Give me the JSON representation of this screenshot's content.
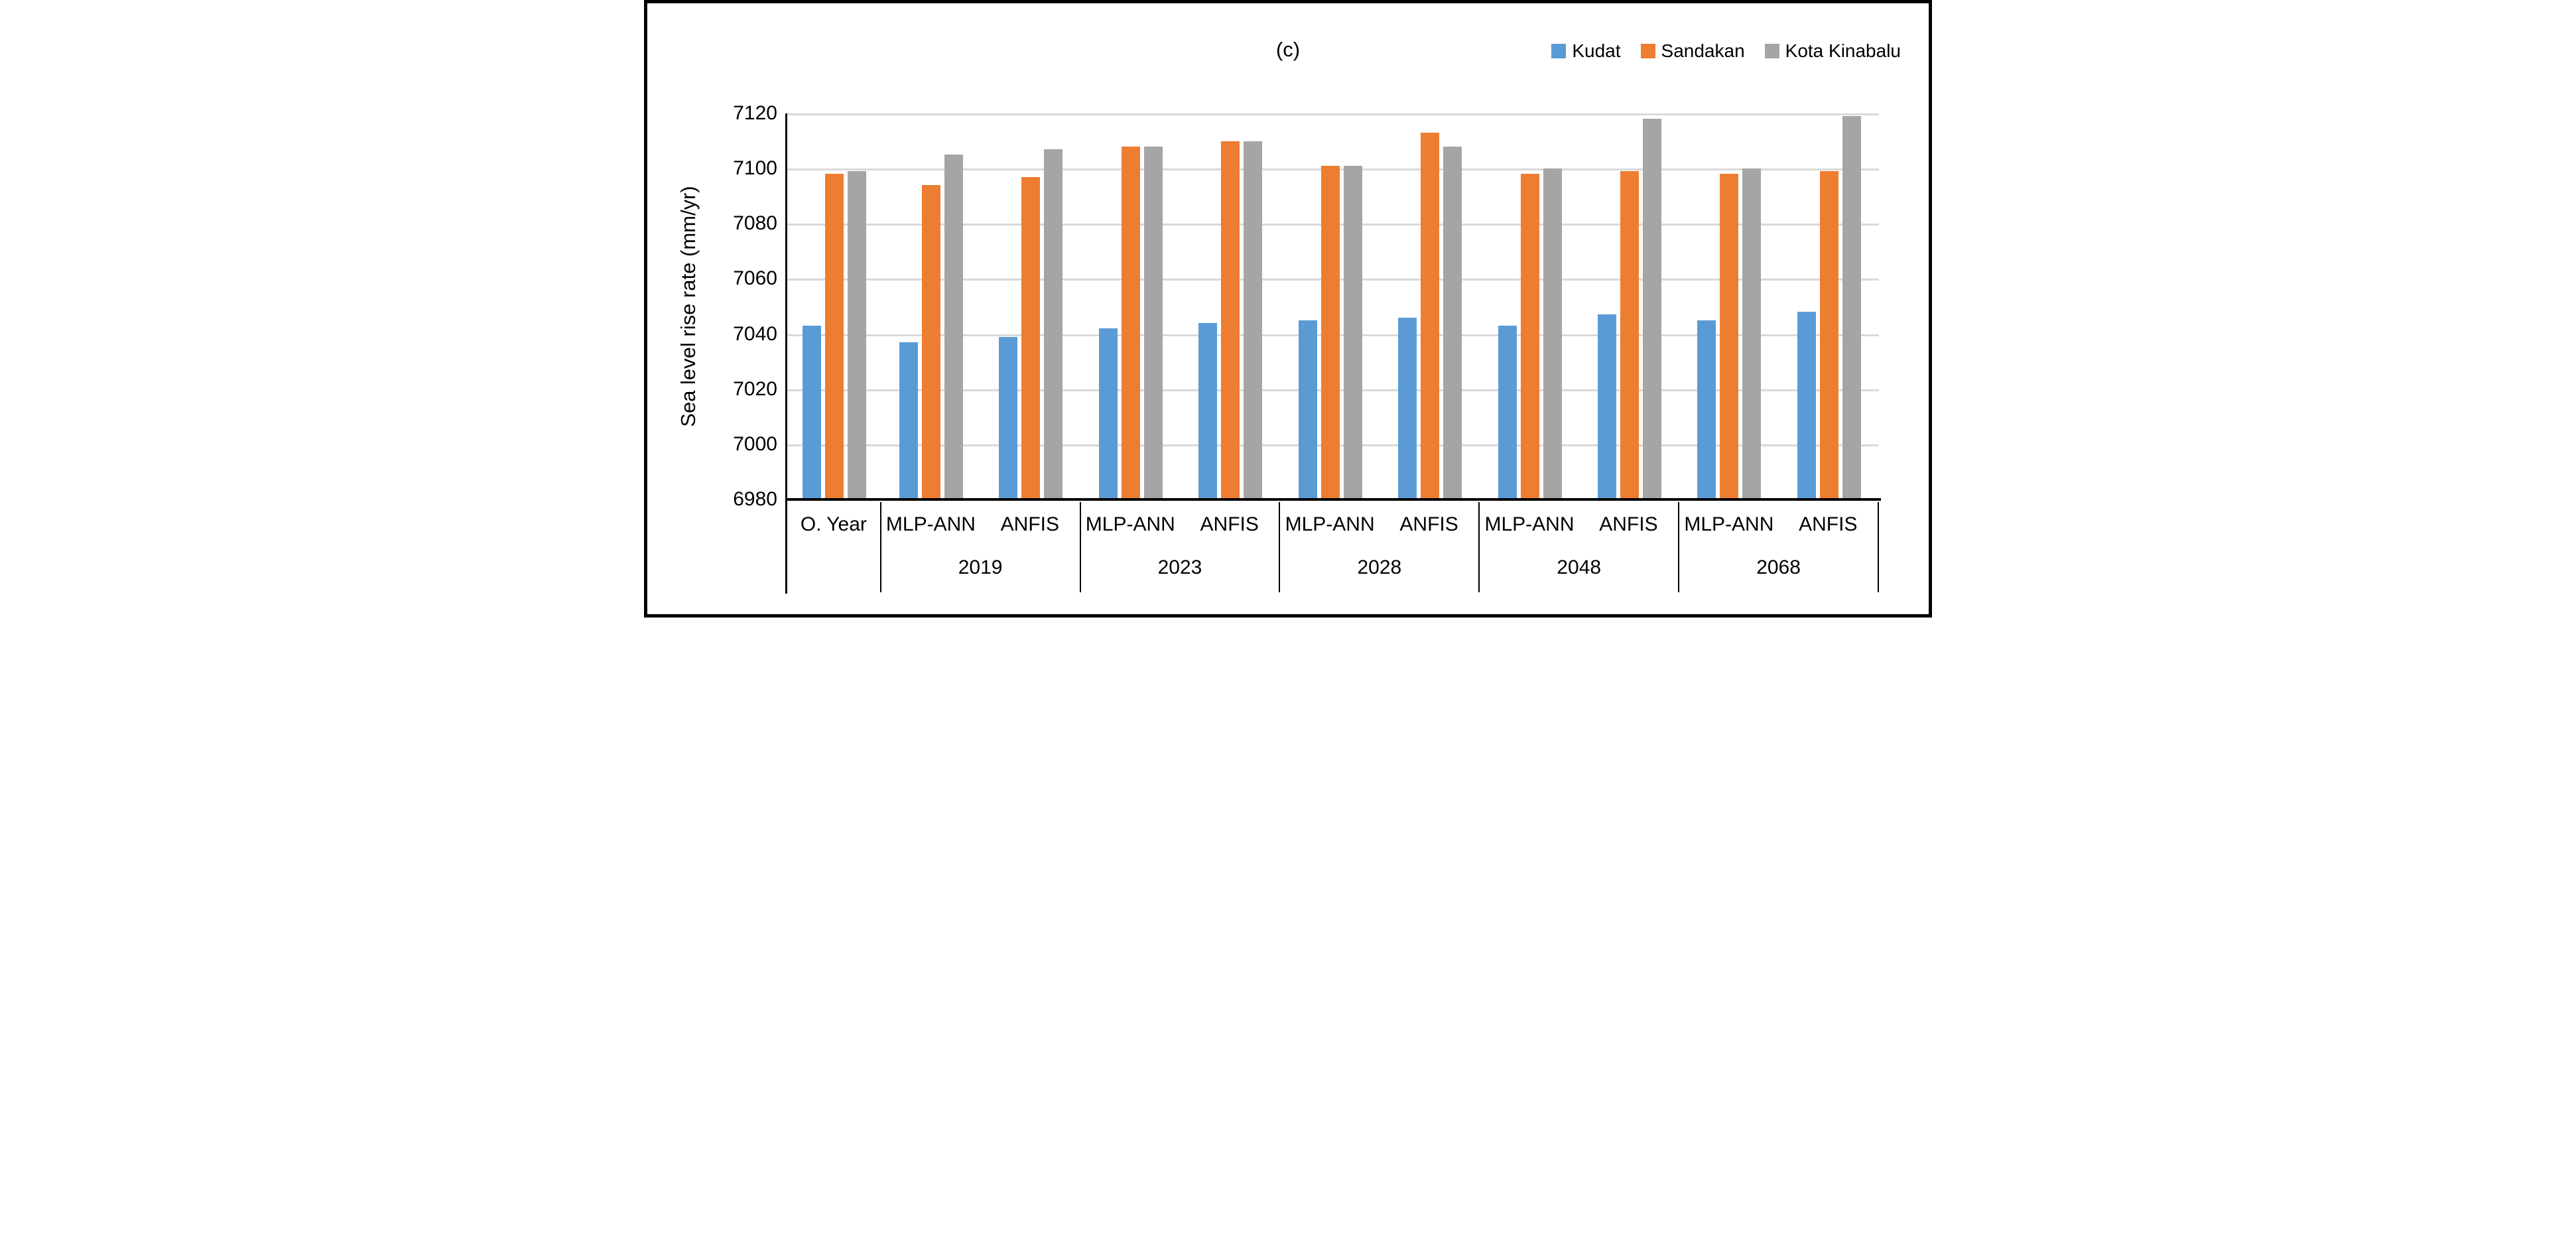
{
  "figure": {
    "panel_label": "(c)"
  },
  "legend": {
    "position": "top-right",
    "items": [
      {
        "label": "Kudat",
        "color": "#5B9BD5"
      },
      {
        "label": "Sandakan",
        "color": "#ED7D31"
      },
      {
        "label": "Kota Kinabalu",
        "color": "#A5A5A5"
      }
    ]
  },
  "y_axis": {
    "title": "Sea level rise rate (mm/yr)",
    "ticks": [
      6980,
      7000,
      7020,
      7040,
      7060,
      7080,
      7100,
      7120
    ]
  },
  "colors": {
    "gridline": "#D9D9D9",
    "axis": "#000000"
  },
  "chart_data": {
    "type": "bar",
    "title": "(c)",
    "ylabel": "Sea level rise rate (mm/yr)",
    "ylim": [
      6980,
      7120
    ],
    "ytick_step": 20,
    "grid": "horizontal",
    "legend_position": "top-right",
    "series_names": [
      "Kudat",
      "Sandakan",
      "Kota Kinabalu"
    ],
    "series_colors": [
      "#5B9BD5",
      "#ED7D31",
      "#A5A5A5"
    ],
    "groups": [
      {
        "year": "",
        "columns": [
          {
            "label": "O. Year",
            "values": [
              7043,
              7098,
              7099
            ]
          }
        ]
      },
      {
        "year": "2019",
        "columns": [
          {
            "label": "MLP-ANN",
            "values": [
              7037,
              7094,
              7105
            ]
          },
          {
            "label": "ANFIS",
            "values": [
              7039,
              7097,
              7107
            ]
          }
        ]
      },
      {
        "year": "2023",
        "columns": [
          {
            "label": "MLP-ANN",
            "values": [
              7042,
              7108,
              7108
            ]
          },
          {
            "label": "ANFIS",
            "values": [
              7044,
              7110,
              7110
            ]
          }
        ]
      },
      {
        "year": "2028",
        "columns": [
          {
            "label": "MLP-ANN",
            "values": [
              7045,
              7101,
              7101
            ]
          },
          {
            "label": "ANFIS",
            "values": [
              7046,
              7113,
              7108
            ]
          }
        ]
      },
      {
        "year": "2048",
        "columns": [
          {
            "label": "MLP-ANN",
            "values": [
              7043,
              7098,
              7100
            ]
          },
          {
            "label": "ANFIS",
            "values": [
              7047,
              7099,
              7118
            ]
          }
        ]
      },
      {
        "year": "2068",
        "columns": [
          {
            "label": "MLP-ANN",
            "values": [
              7045,
              7098,
              7100
            ]
          },
          {
            "label": "ANFIS",
            "values": [
              7048,
              7099,
              7119
            ]
          }
        ]
      }
    ]
  }
}
